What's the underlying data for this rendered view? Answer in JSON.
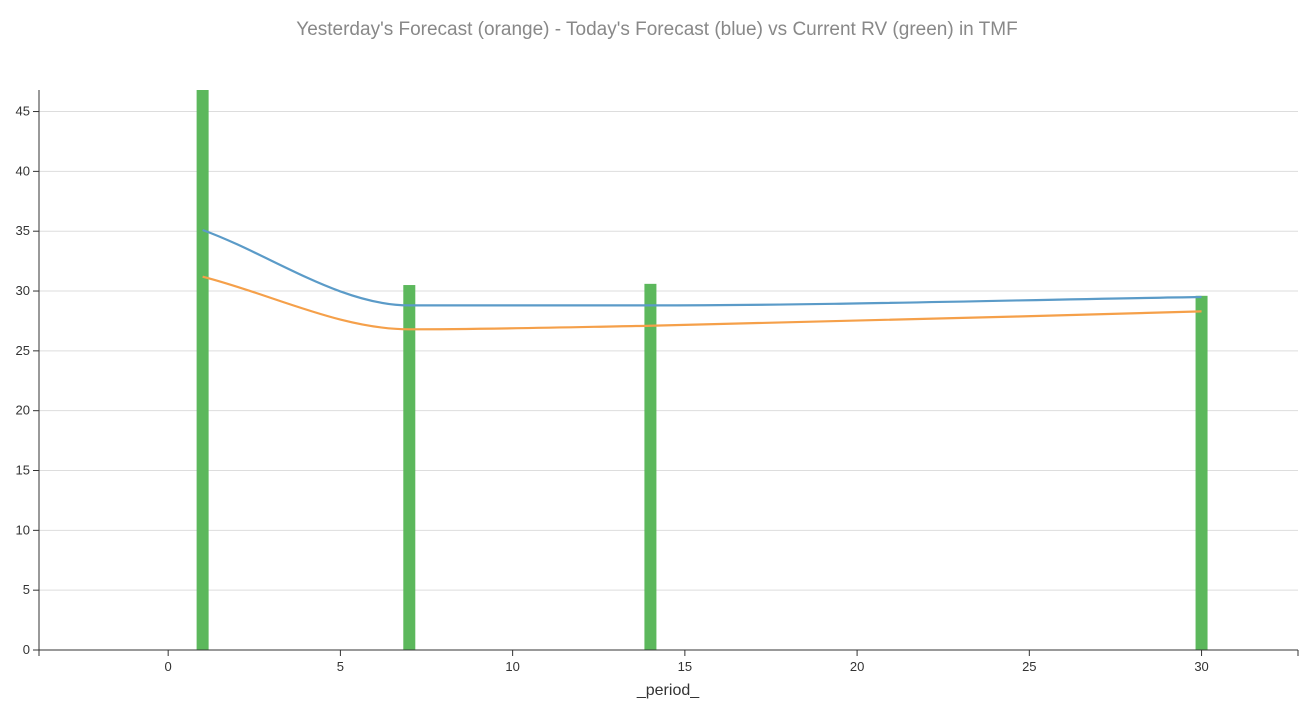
{
  "chart_data": {
    "type": "line",
    "title": "Yesterday's Forecast (orange) - Today's Forecast (blue) vs Current RV (green) in TMF",
    "xlabel": "_period_",
    "ylabel": "",
    "xlim": [
      -3.75,
      32.8
    ],
    "ylim": [
      0,
      46.8
    ],
    "x_ticks": [
      0,
      5,
      10,
      15,
      20,
      25,
      30
    ],
    "y_ticks": [
      0,
      5,
      10,
      15,
      20,
      25,
      30,
      35,
      40,
      45
    ],
    "grid": "horizontal",
    "x_points": [
      1,
      7,
      14,
      30
    ],
    "series": [
      {
        "kind": "bar",
        "color": "#5cb85c",
        "values": [
          46.8,
          30.5,
          30.6,
          29.6
        ]
      },
      {
        "kind": "line",
        "color": "#5b9bc8",
        "values": [
          35.1,
          28.8,
          28.8,
          29.5
        ]
      },
      {
        "kind": "line",
        "color": "#f5a04a",
        "values": [
          31.2,
          26.8,
          27.1,
          28.3
        ]
      }
    ]
  }
}
